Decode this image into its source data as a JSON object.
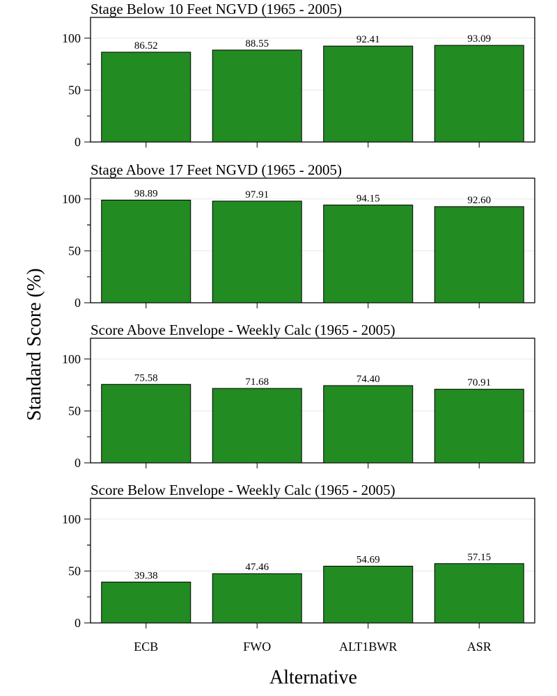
{
  "chart_data": {
    "type": "bar",
    "xlabel": "Alternative",
    "ylabel": "Standard Score (%)",
    "categories": [
      "ECB",
      "FWO",
      "ALT1BWR",
      "ASR"
    ],
    "ylim": [
      0,
      120
    ],
    "yticks": [
      0,
      50,
      100
    ],
    "bar_color": "#228b22",
    "grid": true,
    "panels": [
      {
        "title": "Stage Below 10 Feet NGVD (1965 - 2005)",
        "values": [
          86.52,
          88.55,
          92.41,
          93.09
        ],
        "labels": [
          "86.52",
          "88.55",
          "92.41",
          "93.09"
        ]
      },
      {
        "title": "Stage Above 17 Feet NGVD (1965 - 2005)",
        "values": [
          98.89,
          97.91,
          94.15,
          92.6
        ],
        "labels": [
          "98.89",
          "97.91",
          "94.15",
          "92.60"
        ]
      },
      {
        "title": "Score Above Envelope - Weekly Calc (1965 - 2005)",
        "values": [
          75.58,
          71.68,
          74.4,
          70.91
        ],
        "labels": [
          "75.58",
          "71.68",
          "74.40",
          "70.91"
        ]
      },
      {
        "title": "Score Below Envelope - Weekly Calc (1965 - 2005)",
        "values": [
          39.38,
          47.46,
          54.69,
          57.15
        ],
        "labels": [
          "39.38",
          "47.46",
          "54.69",
          "57.15"
        ]
      }
    ]
  }
}
